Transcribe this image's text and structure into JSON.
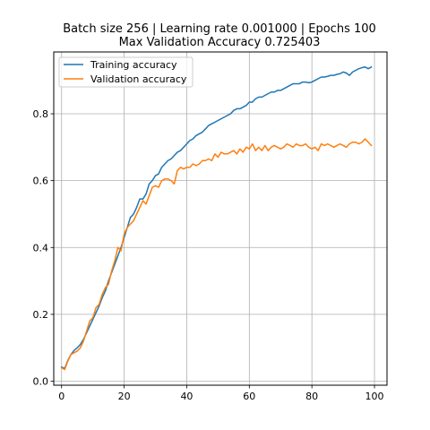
{
  "chart_data": {
    "type": "line",
    "title": "Batch size 256 | Learning rate 0.001000 | Epochs 100",
    "subtitle": "Max Validation Accuracy 0.725403",
    "xlabel": "",
    "ylabel": "",
    "xlim": [
      -2.5,
      104
    ],
    "ylim": [
      -0.012,
      0.985
    ],
    "xticks": [
      0,
      20,
      40,
      60,
      80,
      100
    ],
    "yticks": [
      0.0,
      0.2,
      0.4,
      0.6,
      0.8
    ],
    "xtick_labels": [
      "0",
      "20",
      "40",
      "60",
      "80",
      "100"
    ],
    "ytick_labels": [
      "0.0",
      "0.2",
      "0.4",
      "0.6",
      "0.8"
    ],
    "grid": true,
    "legend_position": "top-left",
    "series": [
      {
        "name": "Training accuracy",
        "color": "#1f77b4",
        "x": [
          0,
          1,
          2,
          3,
          4,
          5,
          6,
          7,
          8,
          9,
          10,
          11,
          12,
          13,
          14,
          15,
          16,
          17,
          18,
          19,
          20,
          21,
          22,
          23,
          24,
          25,
          26,
          27,
          28,
          29,
          30,
          31,
          32,
          33,
          34,
          35,
          36,
          37,
          38,
          39,
          40,
          41,
          42,
          43,
          44,
          45,
          46,
          47,
          48,
          49,
          50,
          51,
          52,
          53,
          54,
          55,
          56,
          57,
          58,
          59,
          60,
          61,
          62,
          63,
          64,
          65,
          66,
          67,
          68,
          69,
          70,
          71,
          72,
          73,
          74,
          75,
          76,
          77,
          78,
          79,
          80,
          81,
          82,
          83,
          84,
          85,
          86,
          87,
          88,
          89,
          90,
          91,
          92,
          93,
          94,
          95,
          96,
          97,
          98,
          99
        ],
        "values": [
          0.042,
          0.038,
          0.062,
          0.08,
          0.092,
          0.1,
          0.11,
          0.125,
          0.145,
          0.165,
          0.185,
          0.205,
          0.225,
          0.25,
          0.27,
          0.3,
          0.325,
          0.35,
          0.375,
          0.4,
          0.43,
          0.46,
          0.49,
          0.5,
          0.52,
          0.545,
          0.545,
          0.56,
          0.59,
          0.6,
          0.615,
          0.62,
          0.64,
          0.65,
          0.66,
          0.665,
          0.675,
          0.685,
          0.69,
          0.7,
          0.71,
          0.72,
          0.725,
          0.735,
          0.74,
          0.745,
          0.755,
          0.765,
          0.77,
          0.775,
          0.78,
          0.785,
          0.79,
          0.795,
          0.8,
          0.81,
          0.815,
          0.815,
          0.82,
          0.825,
          0.835,
          0.835,
          0.845,
          0.85,
          0.85,
          0.855,
          0.86,
          0.865,
          0.865,
          0.87,
          0.87,
          0.875,
          0.88,
          0.885,
          0.89,
          0.89,
          0.89,
          0.895,
          0.895,
          0.893,
          0.895,
          0.9,
          0.905,
          0.91,
          0.91,
          0.912,
          0.915,
          0.915,
          0.918,
          0.92,
          0.925,
          0.922,
          0.915,
          0.925,
          0.93,
          0.935,
          0.938,
          0.94,
          0.935,
          0.94
        ]
      },
      {
        "name": "Validation accuracy",
        "color": "#ff7f0e",
        "x": [
          0,
          1,
          2,
          3,
          4,
          5,
          6,
          7,
          8,
          9,
          10,
          11,
          12,
          13,
          14,
          15,
          16,
          17,
          18,
          19,
          20,
          21,
          22,
          23,
          24,
          25,
          26,
          27,
          28,
          29,
          30,
          31,
          32,
          33,
          34,
          35,
          36,
          37,
          38,
          39,
          40,
          41,
          42,
          43,
          44,
          45,
          46,
          47,
          48,
          49,
          50,
          51,
          52,
          53,
          54,
          55,
          56,
          57,
          58,
          59,
          60,
          61,
          62,
          63,
          64,
          65,
          66,
          67,
          68,
          69,
          70,
          71,
          72,
          73,
          74,
          75,
          76,
          77,
          78,
          79,
          80,
          81,
          82,
          83,
          84,
          85,
          86,
          87,
          88,
          89,
          90,
          91,
          92,
          93,
          94,
          95,
          96,
          97,
          98,
          99
        ],
        "values": [
          0.04,
          0.035,
          0.06,
          0.08,
          0.085,
          0.09,
          0.1,
          0.12,
          0.15,
          0.18,
          0.19,
          0.22,
          0.23,
          0.26,
          0.28,
          0.29,
          0.33,
          0.36,
          0.4,
          0.39,
          0.44,
          0.46,
          0.47,
          0.48,
          0.5,
          0.52,
          0.54,
          0.53,
          0.555,
          0.58,
          0.585,
          0.58,
          0.6,
          0.605,
          0.605,
          0.6,
          0.59,
          0.63,
          0.64,
          0.635,
          0.64,
          0.64,
          0.65,
          0.645,
          0.65,
          0.66,
          0.66,
          0.665,
          0.66,
          0.68,
          0.67,
          0.685,
          0.68,
          0.68,
          0.685,
          0.69,
          0.68,
          0.695,
          0.685,
          0.7,
          0.695,
          0.71,
          0.69,
          0.7,
          0.69,
          0.705,
          0.69,
          0.7,
          0.705,
          0.7,
          0.695,
          0.7,
          0.71,
          0.705,
          0.7,
          0.71,
          0.705,
          0.705,
          0.71,
          0.7,
          0.695,
          0.7,
          0.69,
          0.71,
          0.705,
          0.71,
          0.705,
          0.7,
          0.705,
          0.71,
          0.705,
          0.7,
          0.71,
          0.715,
          0.715,
          0.71,
          0.715,
          0.725,
          0.715,
          0.705
        ]
      }
    ]
  }
}
